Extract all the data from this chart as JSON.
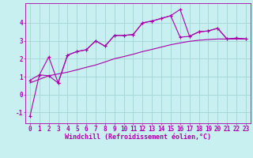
{
  "xlabel": "Windchill (Refroidissement éolien,°C)",
  "bg_color": "#c8f0f0",
  "grid_color": "#a8d8d8",
  "line_color": "#aa00aa",
  "xlim": [
    -0.5,
    23.5
  ],
  "ylim": [
    -1.6,
    5.1
  ],
  "xticks": [
    0,
    1,
    2,
    3,
    4,
    5,
    6,
    7,
    8,
    9,
    10,
    11,
    12,
    13,
    14,
    15,
    16,
    17,
    18,
    19,
    20,
    21,
    22,
    23
  ],
  "yticks": [
    -1,
    0,
    1,
    2,
    3,
    4
  ],
  "line1_x": [
    0,
    1,
    2,
    3,
    4,
    5,
    6,
    7,
    8,
    9,
    10,
    11,
    12,
    13,
    14,
    15,
    16,
    17,
    18,
    19,
    20,
    21,
    22,
    23
  ],
  "line1_y": [
    -1.2,
    1.1,
    1.05,
    0.65,
    2.2,
    2.4,
    2.5,
    3.0,
    2.7,
    3.3,
    3.3,
    3.35,
    4.0,
    4.1,
    4.25,
    4.4,
    4.75,
    3.25,
    3.5,
    3.55,
    3.7,
    3.1,
    3.15,
    3.1
  ],
  "line2_x": [
    0,
    1,
    2,
    3,
    4,
    5,
    6,
    7,
    8,
    9,
    10,
    11,
    12,
    13,
    14,
    15,
    16,
    17,
    18,
    19,
    20,
    21,
    22,
    23
  ],
  "line2_y": [
    0.8,
    1.1,
    2.1,
    0.65,
    2.2,
    2.4,
    2.5,
    3.0,
    2.7,
    3.3,
    3.3,
    3.35,
    4.0,
    4.1,
    4.25,
    4.4,
    3.2,
    3.25,
    3.5,
    3.55,
    3.7,
    3.1,
    3.15,
    3.1
  ],
  "line3_x": [
    0,
    1,
    2,
    3,
    4,
    5,
    6,
    7,
    8,
    9,
    10,
    11,
    12,
    13,
    14,
    15,
    16,
    17,
    18,
    19,
    20,
    21,
    22,
    23
  ],
  "line3_y": [
    0.65,
    0.85,
    1.05,
    1.15,
    1.25,
    1.38,
    1.52,
    1.65,
    1.82,
    2.0,
    2.12,
    2.25,
    2.4,
    2.52,
    2.65,
    2.78,
    2.88,
    2.97,
    3.03,
    3.07,
    3.1,
    3.1,
    3.1,
    3.1
  ],
  "tick_fontsize": 5.5,
  "xlabel_fontsize": 6.0
}
